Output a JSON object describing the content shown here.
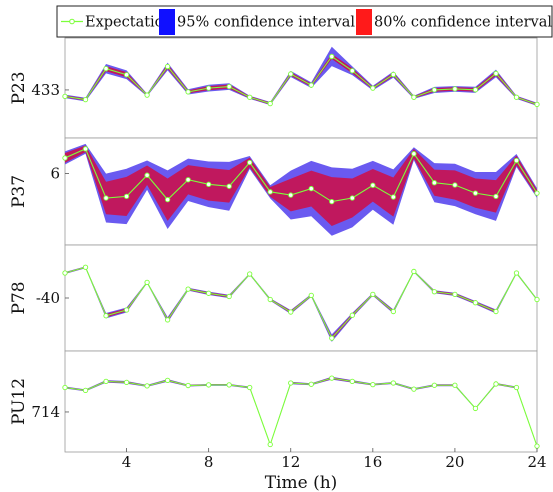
{
  "chart_data": {
    "type": "line",
    "x": [
      1,
      2,
      3,
      4,
      5,
      6,
      7,
      8,
      9,
      10,
      11,
      12,
      13,
      14,
      15,
      16,
      17,
      18,
      19,
      20,
      21,
      22,
      23,
      24
    ],
    "xlabel": "Time (h)",
    "xticks": [
      4,
      8,
      12,
      16,
      20,
      24
    ],
    "legend": {
      "position": "top",
      "entries": [
        "Expectation",
        "95% confidence interval",
        "80% confidence interval"
      ]
    },
    "colors": {
      "expectation": "#7cff3a",
      "ci95": "#1010ff",
      "ci80": "#ff1a1a",
      "ci80_drawn": "#c0185e",
      "ci95_drawn": "#6a5af0"
    },
    "panels": [
      {
        "ylabel": "P23",
        "ytick": 433,
        "ylim": [
          398,
          471
        ],
        "expectation": [
          428.0,
          425.5,
          449.5,
          444.8,
          429.0,
          451.2,
          431.5,
          434.4,
          435.6,
          427.3,
          422.4,
          445.4,
          436.7,
          459.0,
          447.9,
          434.4,
          445.0,
          427.3,
          433.0,
          433.8,
          433.1,
          445.8,
          427.3,
          421.8
        ],
        "ci80_half": [
          0.8,
          0.8,
          2.0,
          2.0,
          0.6,
          1.8,
          1.2,
          1.6,
          1.6,
          0.8,
          0.8,
          1.4,
          1.2,
          2.0,
          2.0,
          1.0,
          1.4,
          0.8,
          1.4,
          1.4,
          1.4,
          1.8,
          0.8,
          0.8
        ],
        "ci95_half": [
          1.4,
          1.4,
          3.6,
          3.4,
          1.0,
          3.0,
          2.0,
          2.6,
          2.6,
          1.2,
          1.2,
          2.4,
          2.2,
          7.5,
          3.4,
          1.8,
          2.4,
          1.2,
          2.4,
          2.2,
          2.4,
          3.0,
          1.2,
          1.2
        ]
      },
      {
        "ylabel": "P37",
        "ytick": 6,
        "ylim": [
          -15,
          16
        ],
        "expectation": [
          10.8,
          13.6,
          -1.5,
          -1.0,
          5.5,
          -2.0,
          4.1,
          2.7,
          2.1,
          9.4,
          0.4,
          -0.6,
          1.4,
          -2.6,
          -1.5,
          2.4,
          -1.2,
          12.1,
          3.2,
          2.5,
          0.0,
          -1.0,
          10.0,
          0.0
        ],
        "ci80_half": [
          1.5,
          1.0,
          5.0,
          6.0,
          3.0,
          6.5,
          4.5,
          5.0,
          5.0,
          1.5,
          1.5,
          5.0,
          5.5,
          7.5,
          6.0,
          5.0,
          6.0,
          1.5,
          4.0,
          4.5,
          4.5,
          5.0,
          1.5,
          1.0
        ],
        "ci95_half": [
          2.0,
          1.5,
          7.5,
          8.5,
          4.5,
          9.0,
          6.5,
          7.0,
          7.5,
          2.0,
          2.0,
          7.5,
          8.5,
          10.5,
          9.0,
          7.5,
          8.5,
          2.0,
          6.0,
          6.5,
          6.5,
          7.5,
          2.0,
          1.5
        ]
      },
      {
        "ylabel": "P78",
        "ytick": -40,
        "ylim": [
          -88,
          8
        ],
        "expectation": [
          -16.0,
          -10.5,
          -57.0,
          -51.5,
          -25.0,
          -61.0,
          -31.5,
          -35.5,
          -38.5,
          -17.0,
          -41.5,
          -53.5,
          -37.5,
          -78.5,
          -56.5,
          -36.5,
          -53.0,
          -14.5,
          -34.0,
          -36.5,
          -44.5,
          -53.0,
          -16.0,
          -41.5
        ],
        "ci80_half": [
          0.6,
          0.6,
          1.6,
          1.5,
          0.6,
          1.6,
          0.9,
          1.0,
          1.0,
          0.6,
          0.8,
          1.2,
          0.9,
          1.8,
          1.4,
          0.9,
          1.2,
          0.6,
          0.9,
          1.0,
          1.0,
          1.2,
          0.6,
          0.6
        ],
        "ci95_half": [
          0.9,
          0.9,
          2.6,
          2.4,
          0.9,
          2.6,
          1.4,
          1.6,
          1.6,
          0.9,
          1.2,
          1.9,
          1.4,
          3.6,
          2.2,
          1.4,
          1.9,
          0.9,
          1.4,
          1.6,
          1.6,
          1.9,
          0.9,
          0.9
        ]
      },
      {
        "ylabel": "PU12",
        "ytick": 714,
        "ylim": [
          691,
          750
        ],
        "expectation": [
          729.2,
          727.4,
          733.0,
          732.4,
          730.2,
          733.6,
          730.4,
          730.8,
          730.8,
          729.2,
          693.8,
          732.0,
          731.2,
          735.0,
          733.0,
          731.0,
          732.0,
          728.2,
          730.6,
          730.6,
          716.2,
          731.4,
          729.2,
          692.8
        ],
        "ci80_half": [
          0.4,
          0.4,
          0.5,
          0.5,
          0.4,
          0.5,
          0.4,
          0.4,
          0.4,
          0.4,
          0.3,
          0.5,
          0.4,
          0.6,
          0.5,
          0.4,
          0.4,
          0.4,
          0.4,
          0.4,
          0.3,
          0.4,
          0.4,
          0.3
        ],
        "ci95_half": [
          0.6,
          0.6,
          0.8,
          0.8,
          0.6,
          0.8,
          0.6,
          0.6,
          0.6,
          0.6,
          0.4,
          0.8,
          0.6,
          0.9,
          0.8,
          0.6,
          0.6,
          0.6,
          0.6,
          0.6,
          0.4,
          0.6,
          0.6,
          0.4
        ]
      }
    ]
  }
}
